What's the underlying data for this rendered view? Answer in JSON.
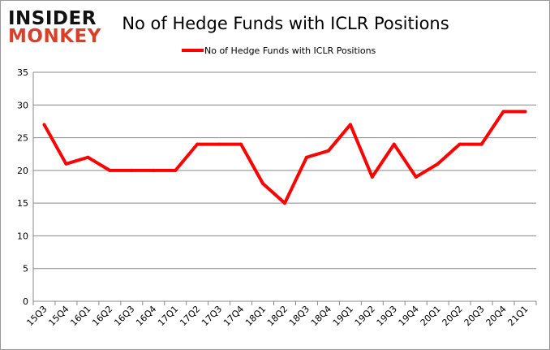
{
  "logo": {
    "line1": "INSIDER",
    "line2": "MONKEY"
  },
  "colors": {
    "series": "#ff0000",
    "grid": "#888888",
    "logo_top": "#111111",
    "logo_bottom": "#d9402a"
  },
  "chart_data": {
    "type": "line",
    "title": "No of Hedge Funds with ICLR Positions",
    "legend": {
      "position": "top",
      "entries": [
        "No of Hedge Funds with ICLR Positions"
      ]
    },
    "categories": [
      "15Q3",
      "15Q4",
      "16Q1",
      "16Q2",
      "16Q3",
      "16Q4",
      "17Q1",
      "17Q2",
      "17Q3",
      "17Q4",
      "18Q1",
      "18Q2",
      "18Q3",
      "18Q4",
      "19Q1",
      "19Q2",
      "19Q3",
      "19Q4",
      "20Q1",
      "20Q2",
      "20Q3",
      "20Q4",
      "21Q1"
    ],
    "series": [
      {
        "name": "No of Hedge Funds with ICLR Positions",
        "values": [
          27,
          21,
          22,
          20,
          20,
          20,
          20,
          24,
          24,
          24,
          18,
          15,
          22,
          23,
          27,
          19,
          24,
          19,
          21,
          24,
          24,
          29,
          29
        ]
      }
    ],
    "ylim": [
      0,
      35
    ],
    "yticks": [
      0,
      5,
      10,
      15,
      20,
      25,
      30,
      35
    ],
    "grid": true,
    "xlabel": "",
    "ylabel": ""
  }
}
